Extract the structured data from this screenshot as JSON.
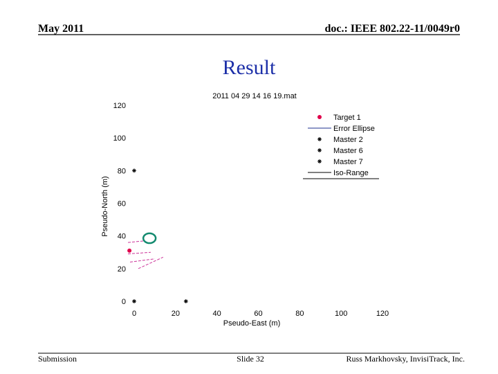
{
  "header": {
    "date": "May 2011",
    "doc": "doc.: IEEE 802.22-11/0049r0"
  },
  "title": "Result",
  "footer": {
    "left": "Submission",
    "center": "Slide 32",
    "right": "Russ Markhovsky, InvisiTrack, Inc."
  },
  "chart_data": {
    "type": "scatter",
    "title": "2011 04 29 14 16 19.mat",
    "x_label": "Pseudo-East (m)",
    "y_label": "Pseudo-North (m)",
    "xlim": [
      0,
      120
    ],
    "ylim": [
      0,
      120
    ],
    "xticks": [
      0,
      20,
      40,
      60,
      80,
      100,
      120
    ],
    "yticks": [
      0,
      20,
      40,
      60,
      80,
      100,
      120
    ],
    "legend": "upper right",
    "series": [
      {
        "name": "Target 1",
        "color": "#e0004a",
        "marker": "dot",
        "x": [
          -2.3
        ],
        "values": [
          31
        ]
      },
      {
        "name": "Error Ellipse",
        "color": "#138a6f",
        "marker": "ellipse",
        "x": [
          7.4
        ],
        "values": [
          38.6
        ],
        "sizes": [
          3
        ]
      },
      {
        "name": "Master 2",
        "color": "#000000",
        "marker": "star",
        "x": [
          0
        ],
        "values": [
          80
        ]
      },
      {
        "name": "Master 6",
        "color": "#000000",
        "marker": "star",
        "x": [
          0
        ],
        "values": [
          0
        ]
      },
      {
        "name": "Master 7",
        "color": "#000000",
        "marker": "star",
        "x": [
          25
        ],
        "values": [
          0
        ]
      },
      {
        "name": "Iso-Range",
        "color": "#cc3399",
        "marker": "line",
        "x": [
          -3,
          5,
          null,
          -3,
          8,
          null,
          -2,
          10,
          null,
          2,
          14
        ],
        "values": [
          36,
          37,
          null,
          29,
          30,
          null,
          24,
          26,
          null,
          20,
          27
        ]
      }
    ]
  }
}
